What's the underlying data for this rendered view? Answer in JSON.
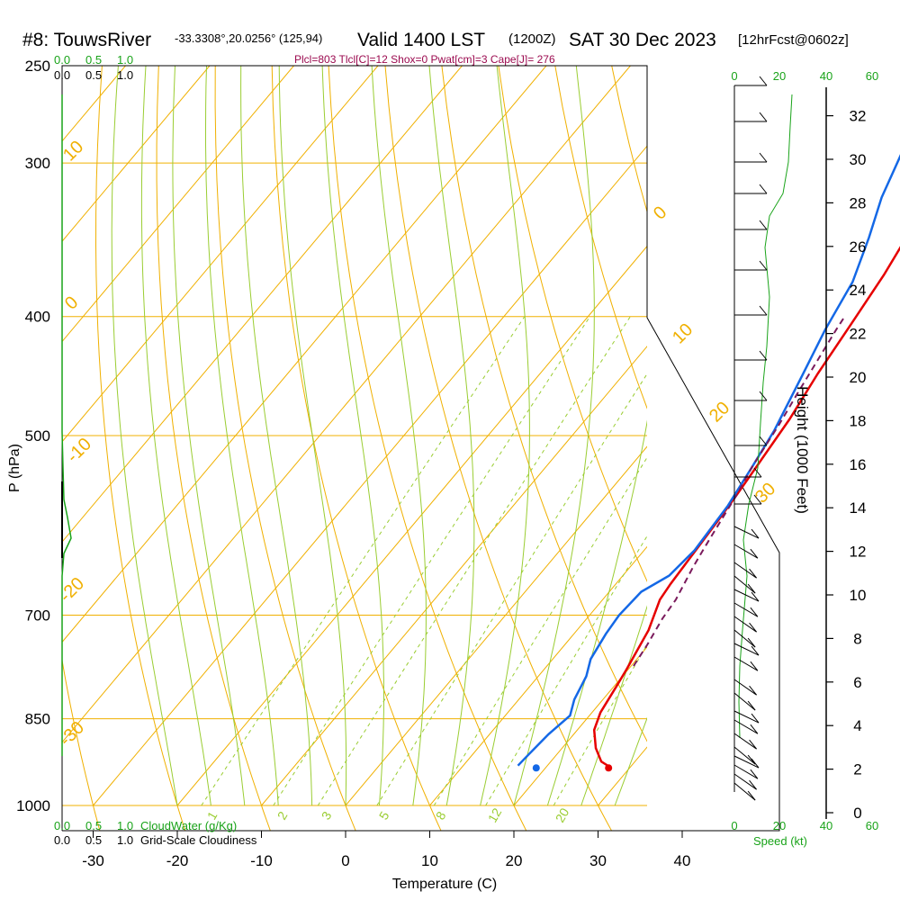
{
  "header": {
    "station": "#8: TouwsRiver",
    "coords": "-33.3308°,20.0256° (125,94)",
    "valid_prefix": "Valid 1400 LST",
    "valid_z": "(1200Z)",
    "valid_date": "SAT 30 Dec 2023",
    "forecast": "[12hrFcst@0602z]"
  },
  "params_line": "Plcl=803 Tlcl[C]=12 Shox=0 Pwat[cm]=3 Cape[J]= 276",
  "cloud_scale_top_green": [
    "0.0",
    "0.5",
    "1.0"
  ],
  "cloud_scale_top_black": [
    "0.0",
    "0.5",
    "1.0"
  ],
  "cloud_scale_bottom_green": [
    "0.0",
    "0.5",
    "1.0"
  ],
  "cloud_scale_bottom_black": [
    "0.0",
    "0.5",
    "1.0"
  ],
  "cloudwater_label": "CloudWater (g/Kg)",
  "cloudiness_label": "Grid-Scale Cloudiness",
  "speed_label": "Speed (kt)",
  "speed_ticks_top_green": [
    "0",
    "20",
    "40",
    "60"
  ],
  "speed_ticks_bottom_green": [
    "0",
    "20",
    "40",
    "60"
  ],
  "chart_data": {
    "type": "line",
    "xlabel": "Temperature (C)",
    "ylabel": "P (hPa)",
    "y2label": "Height (1000 Feet)",
    "x_ticks": [
      "-30",
      "-20",
      "-10",
      "0",
      "10",
      "20",
      "30",
      "40"
    ],
    "p_ticks": [
      "250",
      "300",
      "400",
      "500",
      "700",
      "850",
      "1000"
    ],
    "height_ticks": [
      "0",
      "2",
      "4",
      "6",
      "8",
      "10",
      "12",
      "14",
      "16",
      "18",
      "20",
      "22",
      "24",
      "26",
      "28",
      "30",
      "32"
    ],
    "isotherm_labels": [
      "10",
      "0",
      "-10",
      "-20",
      "-30",
      "0",
      "10",
      "20",
      "30"
    ],
    "mixing_ratio_labels": [
      "1",
      "2",
      "3",
      "5",
      "8",
      "12",
      "20"
    ],
    "series": [
      {
        "name": "",
        "color": "#e60000",
        "points": [
          [
            27.5,
            930
          ],
          [
            26,
            921
          ],
          [
            24,
            898
          ],
          [
            22,
            868
          ],
          [
            21,
            840
          ],
          [
            20.3,
            800
          ],
          [
            19.8,
            775
          ],
          [
            18.5,
            720
          ],
          [
            16.8,
            680
          ],
          [
            16.5,
            660
          ],
          [
            15.8,
            585
          ],
          [
            15.5,
            560
          ],
          [
            15,
            530
          ],
          [
            14.2,
            485
          ],
          [
            13,
            445
          ],
          [
            12,
            405
          ],
          [
            11,
            370
          ],
          [
            9.5,
            335
          ],
          [
            7.5,
            310
          ],
          [
            5,
            285
          ],
          [
            2,
            260
          ]
        ]
      },
      {
        "name": "",
        "color": "#1468e6",
        "points": [
          [
            16.5,
            928
          ],
          [
            16.6,
            915
          ],
          [
            17,
            875
          ],
          [
            17.7,
            845
          ],
          [
            16.6,
            820
          ],
          [
            15.7,
            785
          ],
          [
            14.5,
            760
          ],
          [
            13.8,
            725
          ],
          [
            13.5,
            700
          ],
          [
            13.8,
            670
          ],
          [
            15.5,
            650
          ],
          [
            16,
            620
          ],
          [
            15.5,
            570
          ],
          [
            14.5,
            530
          ],
          [
            13.5,
            495
          ],
          [
            11.5,
            450
          ],
          [
            9.5,
            410
          ],
          [
            8,
            375
          ],
          [
            5.5,
            345
          ],
          [
            3,
            320
          ],
          [
            1,
            295
          ],
          [
            -2,
            260
          ]
        ]
      },
      {
        "name": "",
        "color": "#7a1a5c",
        "dashed": true,
        "points": [
          [
            20.3,
            770
          ],
          [
            19.8,
            740
          ],
          [
            19,
            705
          ],
          [
            18.7,
            680
          ],
          [
            17.5,
            640
          ],
          [
            17,
            620
          ],
          [
            16.5,
            600
          ],
          [
            15.5,
            560
          ],
          [
            14.5,
            530
          ],
          [
            13.5,
            490
          ],
          [
            12.5,
            460
          ],
          [
            11.5,
            430
          ],
          [
            10.8,
            410
          ],
          [
            10.5,
            400
          ]
        ]
      }
    ],
    "surface_points": [
      {
        "name": "",
        "color": "#e60000",
        "t": 27.5,
        "p": 932
      },
      {
        "name": "",
        "color": "#1468e6",
        "t": 18.9,
        "p": 932
      }
    ]
  }
}
